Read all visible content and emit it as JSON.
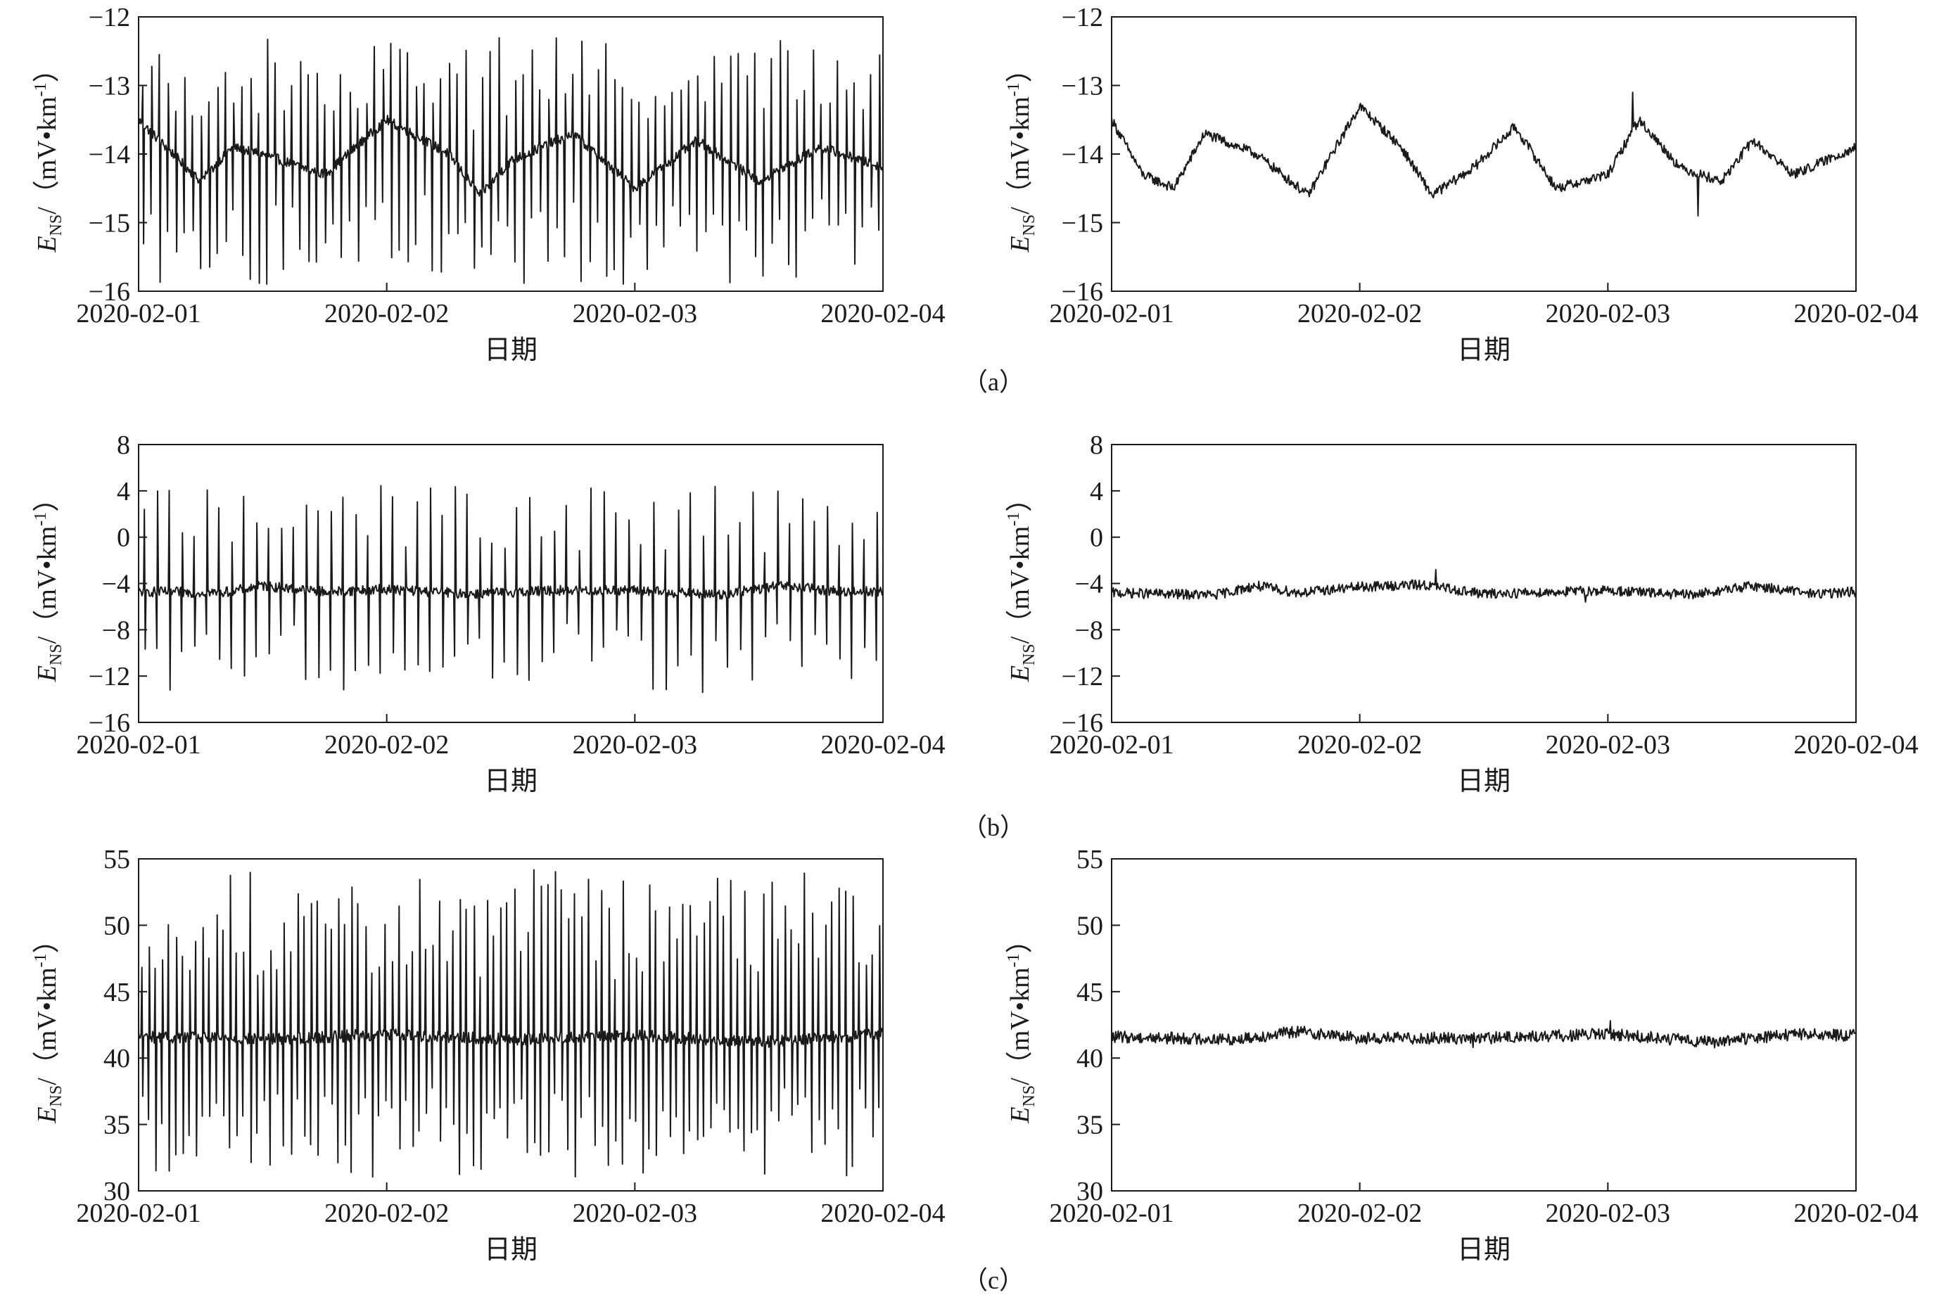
{
  "chart_data": [
    {
      "id": "a-left",
      "type": "line",
      "panel": "a",
      "xlabel": "日期",
      "ylabel": {
        "base": "E",
        "sub": "NS",
        "unit_pre": "/（mV•km",
        "sup": "-1",
        "unit_post": "）"
      },
      "ylim": [
        -16,
        -12
      ],
      "yticks": [
        -12,
        -13,
        -14,
        -15,
        -16
      ],
      "ytick_labels": [
        "−12",
        "−13",
        "−14",
        "−15",
        "−16"
      ],
      "xlim": [
        "2020-02-01",
        "2020-02-04"
      ],
      "xtick_labels": [
        "2020-02-01",
        "2020-02-02",
        "2020-02-03",
        "2020-02-04"
      ],
      "series": [
        {
          "x": [
            "2020-02-01T00:00",
            "2020-02-01T06:00",
            "2020-02-01T09:00",
            "2020-02-01T12:00",
            "2020-02-01T18:00",
            "2020-02-02T00:00",
            "2020-02-02T06:00",
            "2020-02-02T09:00",
            "2020-02-02T12:00",
            "2020-02-02T18:00",
            "2020-02-03T00:00",
            "2020-02-03T06:00",
            "2020-02-03T12:00",
            "2020-02-03T18:00",
            "2020-02-04T00:00"
          ],
          "y": [
            -13.5,
            -14.4,
            -13.9,
            -14.0,
            -14.3,
            -13.5,
            -14.0,
            -14.6,
            -14.1,
            -13.7,
            -14.5,
            -13.8,
            -14.4,
            -13.9,
            -14.2
          ],
          "spikes": {
            "count": 90,
            "max": -12.3,
            "min": -15.9
          }
        }
      ]
    },
    {
      "id": "a-right",
      "type": "line",
      "panel": "a",
      "xlabel": "日期",
      "ylabel": {
        "base": "E",
        "sub": "NS",
        "unit_pre": "/（mV•km",
        "sup": "-1",
        "unit_post": "）"
      },
      "ylim": [
        -16,
        -12
      ],
      "yticks": [
        -12,
        -13,
        -14,
        -15,
        -16
      ],
      "ytick_labels": [
        "−12",
        "−13",
        "−14",
        "−15",
        "−16"
      ],
      "xlim": [
        "2020-02-01",
        "2020-02-04"
      ],
      "xtick_labels": [
        "2020-02-01",
        "2020-02-02",
        "2020-02-03",
        "2020-02-04"
      ],
      "series": [
        {
          "x": [
            "2020-02-01T00:00",
            "2020-02-01T03:00",
            "2020-02-01T06:00",
            "2020-02-01T09:00",
            "2020-02-01T14:00",
            "2020-02-01T19:00",
            "2020-02-02T00:00",
            "2020-02-02T04:00",
            "2020-02-02T07:00",
            "2020-02-02T11:00",
            "2020-02-02T15:00",
            "2020-02-02T19:00",
            "2020-02-03T00:00",
            "2020-02-03T03:00",
            "2020-02-03T07:00",
            "2020-02-03T11:00",
            "2020-02-03T14:00",
            "2020-02-03T18:00",
            "2020-02-04T00:00"
          ],
          "y": [
            -13.5,
            -14.3,
            -14.5,
            -13.7,
            -14.0,
            -14.6,
            -13.3,
            -13.9,
            -14.6,
            -14.2,
            -13.6,
            -14.5,
            -14.3,
            -13.5,
            -14.2,
            -14.4,
            -13.8,
            -14.3,
            -13.9
          ],
          "spikes": {
            "count": 0,
            "max": -13.1,
            "min": -14.9
          }
        }
      ]
    },
    {
      "id": "b-left",
      "type": "line",
      "panel": "b",
      "xlabel": "日期",
      "ylabel": {
        "base": "E",
        "sub": "NS",
        "unit_pre": "/（mV•km",
        "sup": "-1",
        "unit_post": "）"
      },
      "ylim": [
        -16,
        8
      ],
      "yticks": [
        8,
        4,
        0,
        -4,
        -8,
        -12,
        -16
      ],
      "ytick_labels": [
        "8",
        "4",
        "0",
        "−4",
        "−8",
        "−12",
        "−16"
      ],
      "xlim": [
        "2020-02-01",
        "2020-02-04"
      ],
      "xtick_labels": [
        "2020-02-01",
        "2020-02-02",
        "2020-02-03",
        "2020-02-04"
      ],
      "series": [
        {
          "x": [
            "2020-02-01T00:00",
            "2020-02-01T08:00",
            "2020-02-01T12:00",
            "2020-02-01T18:00",
            "2020-02-02T00:00",
            "2020-02-02T08:00",
            "2020-02-02T16:00",
            "2020-02-03T00:00",
            "2020-02-03T08:00",
            "2020-02-03T14:00",
            "2020-02-03T20:00",
            "2020-02-04T00:00"
          ],
          "y": [
            -4.7,
            -4.8,
            -4.2,
            -4.7,
            -4.5,
            -4.9,
            -4.6,
            -4.6,
            -5.0,
            -4.2,
            -4.7,
            -4.7
          ],
          "spikes": {
            "count": 60,
            "max": 4.5,
            "min": -13.5
          }
        }
      ]
    },
    {
      "id": "b-right",
      "type": "line",
      "panel": "b",
      "xlabel": "日期",
      "ylabel": {
        "base": "E",
        "sub": "NS",
        "unit_pre": "/（mV•km",
        "sup": "-1",
        "unit_post": "）"
      },
      "ylim": [
        -16,
        8
      ],
      "yticks": [
        8,
        4,
        0,
        -4,
        -8,
        -12,
        -16
      ],
      "ytick_labels": [
        "8",
        "4",
        "0",
        "−4",
        "−8",
        "−12",
        "−16"
      ],
      "xlim": [
        "2020-02-01",
        "2020-02-04"
      ],
      "xtick_labels": [
        "2020-02-01",
        "2020-02-02",
        "2020-02-03",
        "2020-02-04"
      ],
      "series": [
        {
          "x": [
            "2020-02-01T00:00",
            "2020-02-01T10:00",
            "2020-02-01T14:00",
            "2020-02-01T18:00",
            "2020-02-02T00:00",
            "2020-02-02T06:00",
            "2020-02-02T12:00",
            "2020-02-03T00:00",
            "2020-02-03T08:00",
            "2020-02-03T14:00",
            "2020-02-03T20:00",
            "2020-02-04T00:00"
          ],
          "y": [
            -4.8,
            -5.0,
            -4.2,
            -4.8,
            -4.3,
            -4.1,
            -4.9,
            -4.6,
            -5.0,
            -4.2,
            -4.9,
            -4.7
          ],
          "spikes": {
            "count": 0,
            "max": -2.8,
            "min": -5.6
          }
        }
      ]
    },
    {
      "id": "c-left",
      "type": "line",
      "panel": "c",
      "xlabel": "日期",
      "ylabel": {
        "base": "E",
        "sub": "NS",
        "unit_pre": "/（mV•km",
        "sup": "-1",
        "unit_post": "）"
      },
      "ylim": [
        30,
        55
      ],
      "yticks": [
        55,
        50,
        45,
        40,
        35,
        30
      ],
      "ytick_labels": [
        "55",
        "50",
        "45",
        "40",
        "35",
        "30"
      ],
      "xlim": [
        "2020-02-01",
        "2020-02-04"
      ],
      "xtick_labels": [
        "2020-02-01",
        "2020-02-02",
        "2020-02-03",
        "2020-02-04"
      ],
      "series": [
        {
          "x": [
            "2020-02-01T00:00",
            "2020-02-01T12:00",
            "2020-02-02T00:00",
            "2020-02-02T12:00",
            "2020-02-03T00:00",
            "2020-02-03T12:00",
            "2020-02-04T00:00"
          ],
          "y": [
            41.6,
            41.4,
            41.8,
            41.4,
            41.7,
            41.2,
            41.8
          ],
          "spikes": {
            "count": 110,
            "max": 54.2,
            "min": 31.0
          }
        }
      ]
    },
    {
      "id": "c-right",
      "type": "line",
      "panel": "c",
      "xlabel": "日期",
      "ylabel": {
        "base": "E",
        "sub": "NS",
        "unit_pre": "/（mV•km",
        "sup": "-1",
        "unit_post": "）"
      },
      "ylim": [
        30,
        55
      ],
      "yticks": [
        55,
        50,
        45,
        40,
        35,
        30
      ],
      "ytick_labels": [
        "55",
        "50",
        "45",
        "40",
        "35",
        "30"
      ],
      "xlim": [
        "2020-02-01",
        "2020-02-04"
      ],
      "xtick_labels": [
        "2020-02-01",
        "2020-02-02",
        "2020-02-03",
        "2020-02-04"
      ],
      "series": [
        {
          "x": [
            "2020-02-01T00:00",
            "2020-02-01T12:00",
            "2020-02-01T18:00",
            "2020-02-02T00:00",
            "2020-02-02T12:00",
            "2020-02-03T00:00",
            "2020-02-03T10:00",
            "2020-02-03T18:00",
            "2020-02-04T00:00"
          ],
          "y": [
            41.6,
            41.4,
            42.0,
            41.5,
            41.5,
            41.8,
            41.2,
            41.8,
            41.7
          ],
          "spikes": {
            "count": 0,
            "max": 42.8,
            "min": 40.8
          }
        }
      ]
    }
  ],
  "panel_labels": [
    "（a）",
    "（b）",
    "（c）"
  ],
  "colors": {
    "line": "#1a1a1a",
    "axis": "#1a1a1a",
    "background": "#ffffff"
  }
}
